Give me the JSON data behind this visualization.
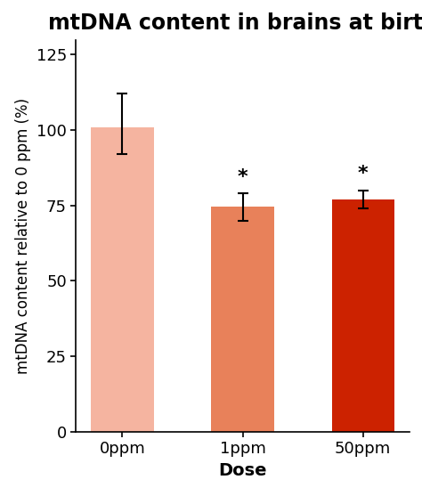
{
  "title": "mtDNA content in brains at birth",
  "categories": [
    "0ppm",
    "1ppm",
    "50ppm"
  ],
  "values": [
    101.0,
    74.5,
    77.0
  ],
  "errors_upper": [
    11.0,
    4.5,
    3.0
  ],
  "errors_lower": [
    9.0,
    4.5,
    3.0
  ],
  "bar_colors": [
    "#f5b4a0",
    "#e8815a",
    "#cc2200"
  ],
  "xlabel": "Dose",
  "ylabel": "mtDNA content relative to 0 ppm (%)",
  "ylim": [
    0,
    130
  ],
  "yticks": [
    0,
    25,
    50,
    75,
    100,
    125
  ],
  "significance": [
    false,
    true,
    true
  ],
  "sig_symbol": "*",
  "title_fontsize": 17,
  "label_fontsize": 13,
  "tick_fontsize": 13,
  "bar_width": 0.52,
  "background_color": "#ffffff",
  "error_capsize": 4,
  "error_linewidth": 1.5
}
